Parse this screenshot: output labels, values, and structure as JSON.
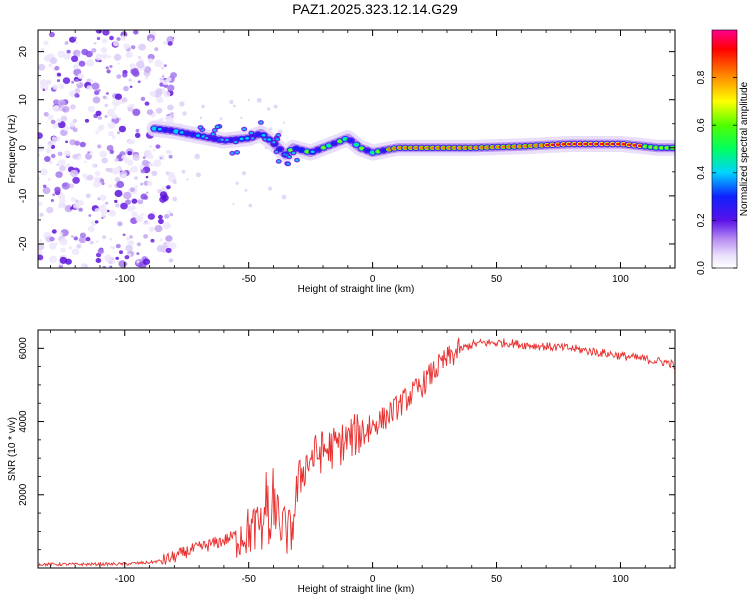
{
  "figure": {
    "title": "PAZ1.2025.323.12.14.G29"
  },
  "chart_data": [
    {
      "type": "heatmap",
      "name": "spectrogram",
      "xlabel": "Height of straight line (km)",
      "ylabel": "Frequency (Hz)",
      "xlim": [
        -135,
        122
      ],
      "ylim": [
        -25,
        24.5
      ],
      "xticks": [
        -100,
        -50,
        0,
        50,
        100
      ],
      "xtick_labels": [
        "-100",
        "-50",
        "0",
        "50",
        "100"
      ],
      "yticks": [
        -20,
        -10,
        0,
        10,
        20
      ],
      "ytick_labels": [
        "-20",
        "-10",
        "0",
        "10",
        "20"
      ],
      "ridge": {
        "height_km": [
          -88,
          -80,
          -70,
          -60,
          -50,
          -45,
          -40,
          -35,
          -32,
          -25,
          -20,
          -15,
          -10,
          -5,
          0,
          5,
          10,
          20,
          40,
          60,
          80,
          100,
          110,
          115,
          122
        ],
        "frequency_hz": [
          4,
          3.5,
          2.5,
          1.5,
          2,
          3,
          1,
          -1.5,
          0,
          -1,
          0,
          1,
          2,
          0,
          -1,
          -0.5,
          0,
          0,
          0,
          0.3,
          0.8,
          0.8,
          0.3,
          0,
          0
        ]
      },
      "noise_region_km": [
        -135,
        -80
      ],
      "colorbar": {
        "label": "Normalized spectral amplitude",
        "range": [
          0,
          1
        ],
        "ticks": [
          0.0,
          0.2,
          0.4,
          0.6,
          0.8
        ],
        "tick_labels": [
          "0.0",
          "0.2",
          "0.4",
          "0.6",
          "0.8"
        ]
      }
    },
    {
      "type": "line",
      "name": "snr",
      "xlabel": "Height of straight line (km)",
      "ylabel": "SNR (10 * v/v)",
      "xlim": [
        -135,
        122
      ],
      "ylim": [
        0,
        6500
      ],
      "xticks": [
        -100,
        -50,
        0,
        50,
        100
      ],
      "xtick_labels": [
        "-100",
        "-50",
        "0",
        "50",
        "100"
      ],
      "yticks": [
        2000,
        4000,
        6000
      ],
      "ytick_labels": [
        "2000",
        "4000",
        "6000"
      ],
      "line_color": "#e8302f",
      "series": [
        {
          "name": "SNR",
          "x": [
            -135,
            -120,
            -100,
            -90,
            -85,
            -80,
            -75,
            -70,
            -65,
            -60,
            -55,
            -50,
            -48,
            -45,
            -42,
            -40,
            -38,
            -35,
            -33,
            -30,
            -28,
            -25,
            -20,
            -15,
            -10,
            -5,
            0,
            5,
            10,
            15,
            20,
            25,
            30,
            35,
            40,
            45,
            50,
            55,
            60,
            70,
            80,
            90,
            100,
            110,
            115,
            120,
            122
          ],
          "y": [
            100,
            100,
            110,
            150,
            200,
            300,
            450,
            550,
            650,
            750,
            900,
            1000,
            1050,
            1150,
            1250,
            1500,
            1300,
            1000,
            900,
            2300,
            2700,
            3000,
            3200,
            3300,
            3500,
            3700,
            3900,
            4100,
            4400,
            4700,
            5000,
            5400,
            5700,
            5950,
            6100,
            6150,
            6150,
            6150,
            6100,
            6050,
            6000,
            5900,
            5800,
            5700,
            5650,
            5600,
            5500
          ]
        }
      ]
    }
  ]
}
